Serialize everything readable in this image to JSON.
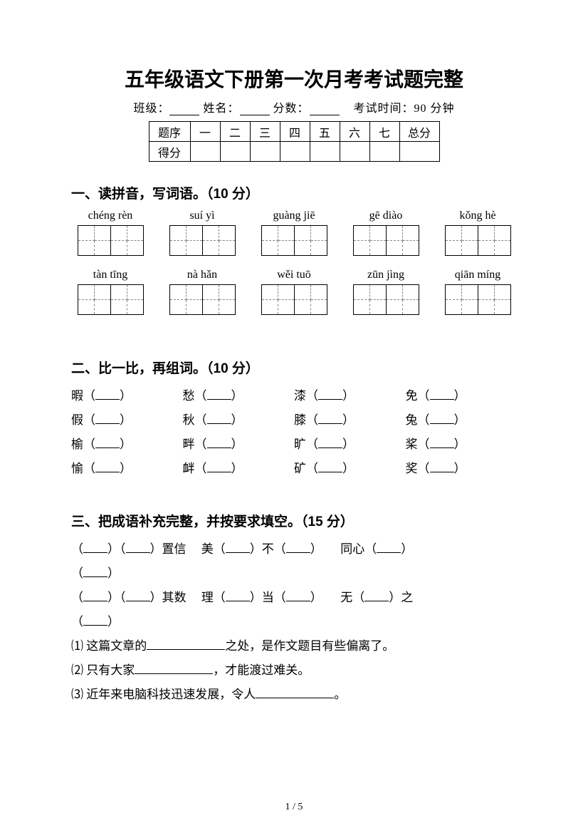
{
  "title": "五年级语文下册第一次月考考试题完整",
  "info": {
    "class_label": "班级：",
    "name_label": "姓名：",
    "score_label": "分数：",
    "time_label": "考试时间：90 分钟"
  },
  "score_table": {
    "row_label": "题序",
    "score_label": "得分",
    "cols": [
      "一",
      "二",
      "三",
      "四",
      "五",
      "六",
      "七"
    ],
    "total": "总分"
  },
  "sec1": {
    "heading": "一、读拼音，写词语。（10 分）",
    "row1": [
      "chéng rèn",
      "suí yì",
      "guàng jiē",
      "gē diào",
      "kǒng hè"
    ],
    "row2": [
      "tàn tīng",
      "nà hǎn",
      "wěi tuō",
      "zūn jìng",
      "qiān míng"
    ]
  },
  "sec2": {
    "heading": "二、比一比，再组词。（10 分）",
    "cols": [
      [
        "暇",
        "假",
        "榆",
        "愉"
      ],
      [
        "愁",
        "秋",
        "畔",
        "衅"
      ],
      [
        "漆",
        "膝",
        "旷",
        "矿"
      ],
      [
        "免",
        "兔",
        "桨",
        "奖"
      ]
    ]
  },
  "sec3": {
    "heading": "三、把成语补充完整，并按要求填空。（15 分）",
    "line1_a": "置信",
    "line1_b_pre": "美",
    "line1_b_mid": "不",
    "line1_c_pre": "同心",
    "line2_a": "其数",
    "line2_b_pre": "理",
    "line2_b_mid": "当",
    "line2_c_pre": "无",
    "line2_c_suf": "之",
    "q1": "⑴ 这篇文章的",
    "q1_suf": "之处，是作文题目有些偏离了。",
    "q2": "⑵ 只有大家",
    "q2_suf": "，才能渡过难关。",
    "q3": "⑶ 近年来电脑科技迅速发展，令人",
    "q3_suf": "。"
  },
  "page_num": "1 / 5"
}
